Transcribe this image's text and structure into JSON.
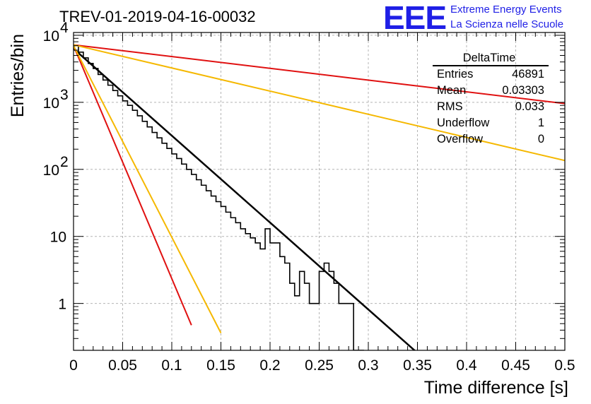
{
  "title": "TREV-01-2019-04-16-00032",
  "logo": {
    "mark": "EEE",
    "line1": "Extreme Energy Events",
    "line2": "La Scienza nelle Scuole"
  },
  "stats": {
    "name": "DeltaTime",
    "rows": [
      {
        "label": "Entries",
        "value": "46891"
      },
      {
        "label": "Mean",
        "value": "0.03303"
      },
      {
        "label": "RMS",
        "value": "0.033"
      },
      {
        "label": "Underflow",
        "value": "1"
      },
      {
        "label": "Overflow",
        "value": "0"
      }
    ]
  },
  "chart_data": {
    "type": "line",
    "xlabel": "Time difference [s]",
    "ylabel": "Entries/bin",
    "xlim": [
      0,
      0.5
    ],
    "ylim": [
      0.2,
      11000
    ],
    "yscale": "log",
    "grid": true,
    "x_ticks": [
      0,
      0.05,
      0.1,
      0.15,
      0.2,
      0.25,
      0.3,
      0.35,
      0.4,
      0.45,
      0.5
    ],
    "x_tick_labels": [
      "0",
      "0.05",
      "0.1",
      "0.15",
      "0.2",
      "0.25",
      "0.3",
      "0.35",
      "0.4",
      "0.45",
      "0.5"
    ],
    "y_ticks": [
      1,
      10,
      100,
      1000,
      10000
    ],
    "y_tick_labels": [
      {
        "base": "1",
        "exp": ""
      },
      {
        "base": "10",
        "exp": ""
      },
      {
        "base": "10",
        "exp": "2"
      },
      {
        "base": "10",
        "exp": "3"
      },
      {
        "base": "10",
        "exp": "4"
      }
    ],
    "histogram": {
      "bin_width": 0.005,
      "values": [
        7000,
        5600,
        4600,
        3800,
        3200,
        2600,
        2150,
        1800,
        1500,
        1250,
        1050,
        900,
        760,
        630,
        520,
        430,
        355,
        295,
        245,
        205,
        170,
        145,
        120,
        100,
        84,
        70,
        58,
        48,
        40,
        33,
        28,
        23,
        19,
        16,
        13,
        11,
        9.5,
        8,
        6.5,
        13,
        8,
        8,
        5,
        4,
        2,
        1.3,
        3,
        2,
        1,
        1,
        3,
        4,
        3,
        2,
        1,
        1,
        1,
        0.2,
        0.2,
        0,
        0,
        0,
        0,
        0,
        0,
        0,
        0,
        0,
        0,
        0,
        0,
        0,
        0,
        0,
        0,
        0,
        0,
        0,
        0,
        0,
        0,
        0,
        0,
        0,
        0,
        0,
        0,
        0,
        0,
        0,
        0,
        0,
        0,
        0,
        0,
        0,
        0,
        0,
        0,
        0
      ]
    },
    "series": [
      {
        "color": "#000000",
        "a": 6300,
        "tau": 0.0335,
        "x_end": 0.35,
        "width": 2.5
      },
      {
        "color": "#e01010",
        "a": 7000,
        "tau": 0.0125,
        "x_end": 0.12,
        "width": 2
      },
      {
        "color": "#f5b800",
        "a": 7000,
        "tau": 0.0152,
        "x_end": 0.15,
        "width": 2
      },
      {
        "color": "#e01010",
        "a": 7200,
        "tau": 0.2478,
        "x_end": 0.5,
        "width": 2
      },
      {
        "color": "#f5b800",
        "a": 7200,
        "tau": 0.1258,
        "x_end": 0.5,
        "width": 2
      }
    ]
  }
}
